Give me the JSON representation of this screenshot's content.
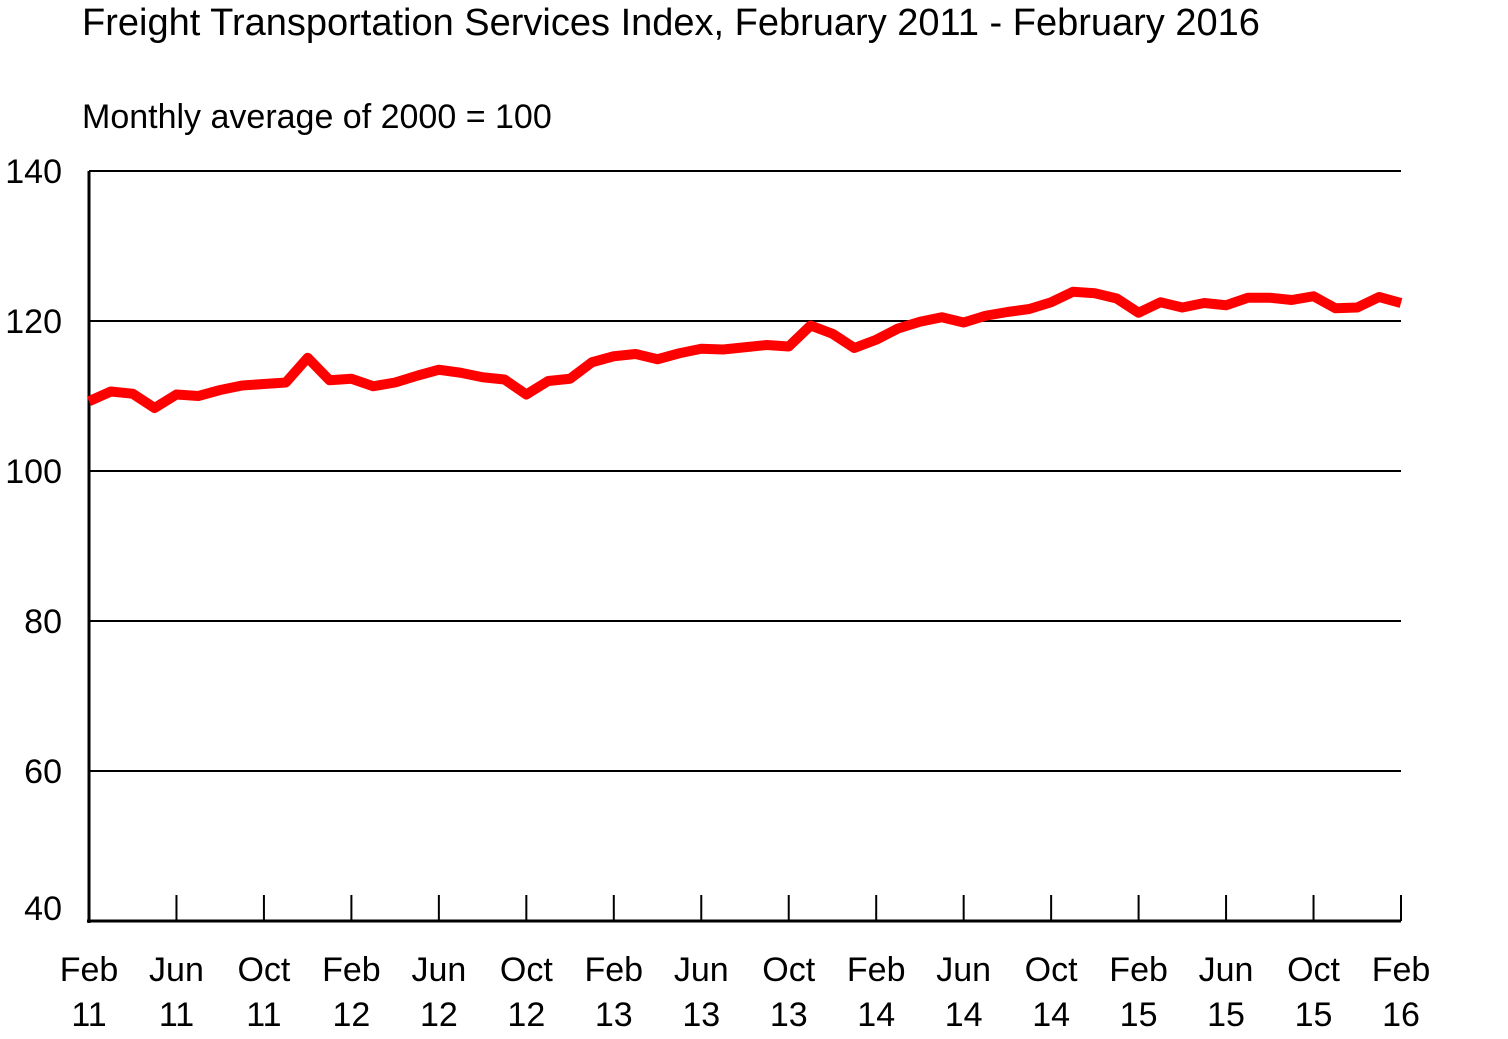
{
  "chart_data": {
    "type": "line",
    "title": "Freight Transportation Services Index, February 2011 - February 2016",
    "subtitle": "Monthly average of 2000 = 100",
    "xlabel": "",
    "ylabel": "",
    "ylim": [
      40,
      140
    ],
    "y_ticks": [
      40,
      60,
      80,
      100,
      120,
      140
    ],
    "grid": true,
    "legend": "none",
    "line_color": "#ff0000",
    "x_tick_labels": [
      {
        "month": "Feb",
        "year": "11"
      },
      {
        "month": "Jun",
        "year": "11"
      },
      {
        "month": "Oct",
        "year": "11"
      },
      {
        "month": "Feb",
        "year": "12"
      },
      {
        "month": "Jun",
        "year": "12"
      },
      {
        "month": "Oct",
        "year": "12"
      },
      {
        "month": "Feb",
        "year": "13"
      },
      {
        "month": "Jun",
        "year": "13"
      },
      {
        "month": "Oct",
        "year": "13"
      },
      {
        "month": "Feb",
        "year": "14"
      },
      {
        "month": "Jun",
        "year": "14"
      },
      {
        "month": "Oct",
        "year": "14"
      },
      {
        "month": "Feb",
        "year": "15"
      },
      {
        "month": "Jun",
        "year": "15"
      },
      {
        "month": "Oct",
        "year": "15"
      },
      {
        "month": "Feb",
        "year": "16"
      }
    ],
    "x": [
      "2011-02",
      "2011-03",
      "2011-04",
      "2011-05",
      "2011-06",
      "2011-07",
      "2011-08",
      "2011-09",
      "2011-10",
      "2011-11",
      "2011-12",
      "2012-01",
      "2012-02",
      "2012-03",
      "2012-04",
      "2012-05",
      "2012-06",
      "2012-07",
      "2012-08",
      "2012-09",
      "2012-10",
      "2012-11",
      "2012-12",
      "2013-01",
      "2013-02",
      "2013-03",
      "2013-04",
      "2013-05",
      "2013-06",
      "2013-07",
      "2013-08",
      "2013-09",
      "2013-10",
      "2013-11",
      "2013-12",
      "2014-01",
      "2014-02",
      "2014-03",
      "2014-04",
      "2014-05",
      "2014-06",
      "2014-07",
      "2014-08",
      "2014-09",
      "2014-10",
      "2014-11",
      "2014-12",
      "2015-01",
      "2015-02",
      "2015-03",
      "2015-04",
      "2015-05",
      "2015-06",
      "2015-07",
      "2015-08",
      "2015-09",
      "2015-10",
      "2015-11",
      "2015-12",
      "2016-01",
      "2016-02"
    ],
    "series": [
      {
        "values": [
          109.3,
          110.6,
          110.3,
          108.4,
          110.2,
          110.0,
          110.8,
          111.4,
          111.6,
          111.8,
          115.1,
          112.1,
          112.3,
          111.3,
          111.8,
          112.7,
          113.5,
          113.1,
          112.5,
          112.2,
          110.2,
          112.0,
          112.3,
          114.5,
          115.3,
          115.6,
          114.9,
          115.7,
          116.3,
          116.2,
          116.5,
          116.8,
          116.6,
          119.4,
          118.3,
          116.4,
          117.5,
          119.0,
          119.9,
          120.5,
          119.8,
          120.7,
          121.2,
          121.6,
          122.5,
          123.9,
          123.7,
          123.0,
          121.1,
          122.5,
          121.8,
          122.4,
          122.1,
          123.1,
          123.1,
          122.8,
          123.3,
          121.7,
          121.8,
          123.2,
          122.4
        ]
      }
    ]
  }
}
